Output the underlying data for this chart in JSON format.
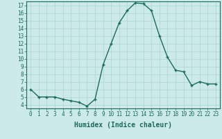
{
  "xlabel": "Humidex (Indice chaleur)",
  "ylabel": "",
  "x": [
    0,
    1,
    2,
    3,
    4,
    5,
    6,
    7,
    8,
    9,
    10,
    11,
    12,
    13,
    14,
    15,
    16,
    17,
    18,
    19,
    20,
    21,
    22,
    23
  ],
  "y": [
    6.0,
    5.0,
    5.0,
    5.0,
    4.7,
    4.5,
    4.3,
    3.8,
    4.7,
    9.2,
    12.0,
    14.7,
    16.3,
    17.3,
    17.2,
    16.3,
    13.0,
    10.2,
    8.5,
    8.3,
    6.5,
    7.0,
    6.7,
    6.7
  ],
  "line_color": "#1a6b5a",
  "marker": "+",
  "marker_size": 3.5,
  "line_width": 1.0,
  "bg_color": "#cceae7",
  "grid_color": "#aed4d0",
  "xlim": [
    -0.5,
    23.5
  ],
  "ylim": [
    3.5,
    17.5
  ],
  "yticks": [
    4,
    5,
    6,
    7,
    8,
    9,
    10,
    11,
    12,
    13,
    14,
    15,
    16,
    17
  ],
  "xticks": [
    0,
    1,
    2,
    3,
    4,
    5,
    6,
    7,
    8,
    9,
    10,
    11,
    12,
    13,
    14,
    15,
    16,
    17,
    18,
    19,
    20,
    21,
    22,
    23
  ],
  "tick_label_fontsize": 5.5,
  "xlabel_fontsize": 7.0,
  "tick_color": "#1a6b5a",
  "axis_color": "#1a6b5a"
}
